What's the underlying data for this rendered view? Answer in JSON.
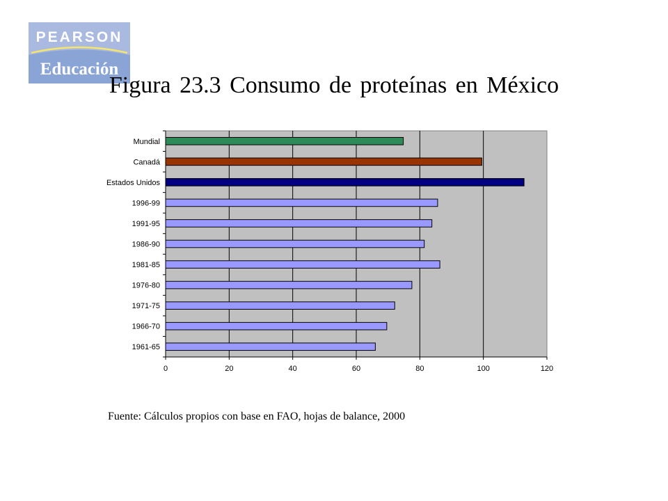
{
  "logo": {
    "top_text": "PEARSON",
    "bottom_text": "Educación"
  },
  "title": "Figura 23.3 Consumo de proteínas en México",
  "source": "Fuente: Cálculos propios con base en FAO, hojas de balance, 2000",
  "chart_data": {
    "type": "bar",
    "orientation": "horizontal",
    "categories": [
      "Mundial",
      "Canadá",
      "Estados Unidos",
      "1996-99",
      "1991-95",
      "1986-90",
      "1981-85",
      "1976-80",
      "1971-75",
      "1966-70",
      "1961-65"
    ],
    "values": [
      74.8,
      99.5,
      112.8,
      85.6,
      83.8,
      81.4,
      86.3,
      77.5,
      72.1,
      69.6,
      66.0
    ],
    "bar_colors": [
      "#2e8b57",
      "#993300",
      "#000080",
      "#9999ff",
      "#9999ff",
      "#9999ff",
      "#9999ff",
      "#9999ff",
      "#9999ff",
      "#9999ff",
      "#9999ff"
    ],
    "xlim": [
      0,
      120
    ],
    "x_ticks": [
      0,
      20,
      40,
      60,
      80,
      100,
      120
    ],
    "plot_background": "#c0c0c0",
    "grid": "vertical",
    "title": "",
    "xlabel": "",
    "ylabel": "",
    "legend": "none"
  }
}
